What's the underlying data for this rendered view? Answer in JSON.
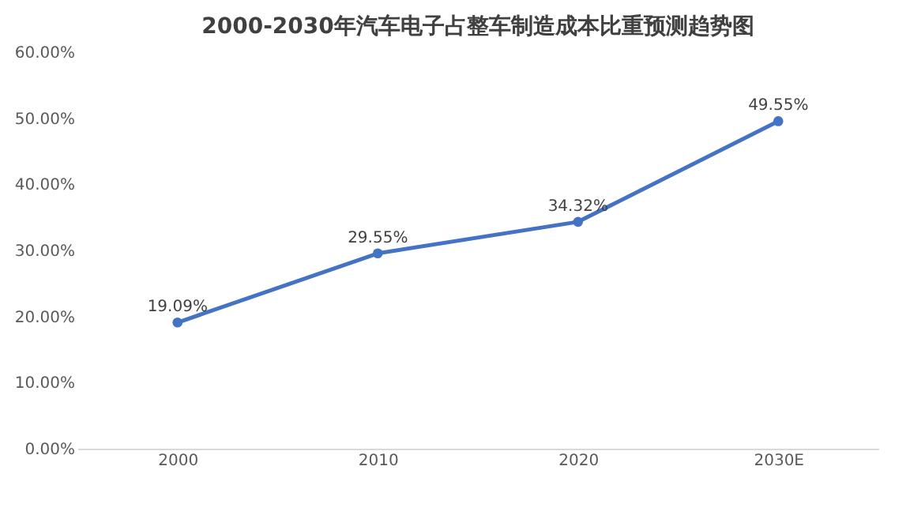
{
  "chart_data": {
    "type": "line",
    "title": "2000-2030年汽车电子占整车制造成本比重预测趋势图",
    "categories": [
      "2000",
      "2010",
      "2020",
      "2030E"
    ],
    "series": [
      {
        "color": "#4472c4",
        "values": [
          19.09,
          29.55,
          34.32,
          49.55
        ],
        "value_labels": [
          "19.09%",
          "29.55%",
          "34.32%",
          "49.55%"
        ]
      }
    ],
    "ylim": [
      0,
      60
    ],
    "yticks": [
      {
        "value": 0,
        "label": "0.00%"
      },
      {
        "value": 10,
        "label": "10.00%"
      },
      {
        "value": 20,
        "label": "20.00%"
      },
      {
        "value": 30,
        "label": "30.00%"
      },
      {
        "value": 40,
        "label": "40.00%"
      },
      {
        "value": 50,
        "label": "50.00%"
      },
      {
        "value": 60,
        "label": "60.00%"
      }
    ],
    "marker": "circle",
    "line_style": "solid",
    "grid": false
  }
}
